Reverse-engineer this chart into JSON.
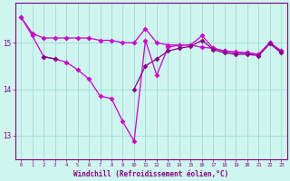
{
  "xlabel": "Windchill (Refroidissement éolien,°C)",
  "bg_color": "#cef5ee",
  "grid_color": "#aadddd",
  "line_color1": "#cc00cc",
  "line_color2": "#880088",
  "xlim": [
    -0.5,
    23.5
  ],
  "ylim": [
    12.5,
    15.85
  ],
  "yticks": [
    13,
    14,
    15
  ],
  "xticks": [
    0,
    1,
    2,
    3,
    4,
    5,
    6,
    7,
    8,
    9,
    10,
    11,
    12,
    13,
    14,
    15,
    16,
    17,
    18,
    19,
    20,
    21,
    22,
    23
  ],
  "series1": [
    15.55,
    15.2,
    15.1,
    15.1,
    15.1,
    15.1,
    15.1,
    15.05,
    15.05,
    15.0,
    15.0,
    15.3,
    15.0,
    14.95,
    14.95,
    14.95,
    14.9,
    14.88,
    14.82,
    14.8,
    14.78,
    14.75,
    15.0,
    14.82
  ],
  "series2": [
    15.55,
    15.15,
    14.7,
    14.65,
    14.58,
    14.42,
    14.22,
    13.85,
    13.8,
    13.3,
    12.88,
    15.05,
    14.3,
    14.9,
    14.95,
    14.95,
    15.15,
    14.88,
    14.82,
    14.78,
    14.78,
    14.75,
    15.0,
    14.82
  ],
  "series3_x": [
    2,
    3,
    10,
    11,
    12,
    13,
    14,
    15,
    16,
    17,
    18,
    19,
    20,
    21,
    22,
    23
  ],
  "series3_y": [
    14.7,
    14.65,
    14.0,
    14.5,
    14.65,
    14.82,
    14.88,
    14.92,
    15.05,
    14.85,
    14.78,
    14.75,
    14.75,
    14.72,
    14.98,
    14.78
  ]
}
